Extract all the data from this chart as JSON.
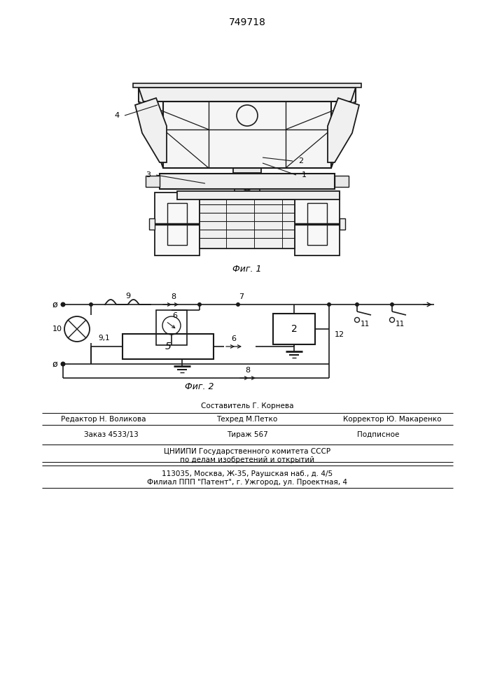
{
  "patent_number": "749718",
  "fig1_label": "Фиг. 1",
  "fig2_label": "Фиг. 2",
  "footer_line1_center": "Составитель Г. Корнева",
  "footer_line1_left": "Редактор Н. Воликова",
  "footer_line1_right": "Корректор Ю. Макаренко",
  "footer_line2_left": "Заказ 4533/13",
  "footer_line2_center": "Техред М.Петко",
  "footer_line2_right": "Подписное",
  "footer_line3_left": "Тираж 567",
  "footer_org1": "ЦНИИПИ Государственного комитета СССР",
  "footer_org2": "по делам изобретений и открытий",
  "footer_addr1": "113035, Москва, Ж-35, Раушская наб., д. 4/5",
  "footer_addr2": "Филиал ППП \"Патент\", г. Ужгород, ул. Проектная, 4",
  "bg_color": "#ffffff",
  "line_color": "#1a1a1a"
}
